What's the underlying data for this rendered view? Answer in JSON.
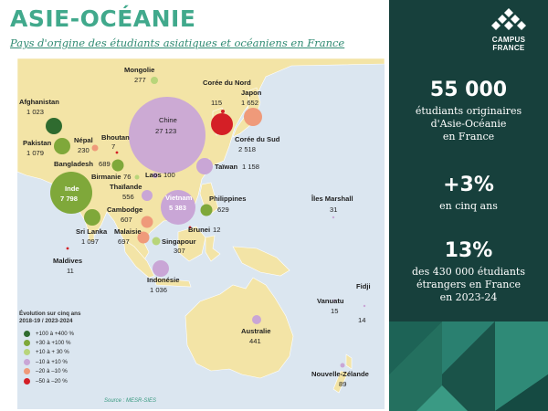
{
  "header": {
    "title": "ASIE-OCÉANIE",
    "subtitle": "Pays d'origine des étudiants asiatiques et océaniens en France"
  },
  "legend": {
    "title_line1": "Évolution sur cinq ans",
    "title_line2": "2018-19 / 2023-2024",
    "items": [
      {
        "label": "+100 à +400 %",
        "color": "#2f6b2f"
      },
      {
        "label": "+30 à +100 %",
        "color": "#7fa83a"
      },
      {
        "label": "+10 à + 30 %",
        "color": "#b8d57a"
      },
      {
        "label": "–10 à +10 %",
        "color": "#c9a6d6"
      },
      {
        "label": "–20 à –10 %",
        "color": "#ef9a7a"
      },
      {
        "label": "–50 à –20 %",
        "color": "#d41f26"
      }
    ]
  },
  "source": "Source : MESR-SIES",
  "countries": [
    {
      "name": "Mongolie",
      "value": "277",
      "color": "#b8d57a"
    },
    {
      "name": "Corée du Nord",
      "value": "115",
      "color": "#d41f26"
    },
    {
      "name": "Japon",
      "value": "1 652",
      "color": "#ef9a7a"
    },
    {
      "name": "Afghanistan",
      "value": "1 023",
      "color": "#2f6b2f"
    },
    {
      "name": "Chine",
      "value": "27 123",
      "color": "#c9a6d6"
    },
    {
      "name": "Corée du Sud",
      "value": "2 518",
      "color": "#d41f26"
    },
    {
      "name": "Népal",
      "value": "230",
      "color": "#ef9a7a"
    },
    {
      "name": "Bhoutan",
      "value": "7",
      "color": "#d41f26"
    },
    {
      "name": "Pakistan",
      "value": "1 079",
      "color": "#7fa83a"
    },
    {
      "name": "Bangladesh",
      "value": "689",
      "color": "#7fa83a"
    },
    {
      "name": "Taïwan",
      "value": "1 158",
      "color": "#c9a6d6"
    },
    {
      "name": "Birmanie",
      "value": "76",
      "color": "#b8d57a"
    },
    {
      "name": "Laos",
      "value": "100",
      "color": "#c9a6d6"
    },
    {
      "name": "Thaïlande",
      "value": "556",
      "color": "#c9a6d6"
    },
    {
      "name": "Inde",
      "value": "7 798",
      "color": "#7fa83a"
    },
    {
      "name": "Vietnam",
      "value": "5 383",
      "color": "#c9a6d6"
    },
    {
      "name": "Philippines",
      "value": "629",
      "color": "#7fa83a"
    },
    {
      "name": "Îles Marshall",
      "value": "31",
      "color": "#c9a6d6"
    },
    {
      "name": "Cambodge",
      "value": "607",
      "color": "#ef9a7a"
    },
    {
      "name": "Brunei",
      "value": "12",
      "color": "#d41f26"
    },
    {
      "name": "Sri Lanka",
      "value": "1 097",
      "color": "#7fa83a"
    },
    {
      "name": "Malaisie",
      "value": "697",
      "color": "#ef9a7a"
    },
    {
      "name": "Singapour",
      "value": "307",
      "color": "#b8d57a"
    },
    {
      "name": "Maldives",
      "value": "11",
      "color": "#d41f26"
    },
    {
      "name": "Indonésie",
      "value": "1 036",
      "color": "#c9a6d6"
    },
    {
      "name": "Vanuatu",
      "value": "15",
      "color": "#c9a6d6"
    },
    {
      "name": "Fidji",
      "value": "14",
      "color": "#c9a6d6"
    },
    {
      "name": "Australie",
      "value": "441",
      "color": "#c9a6d6"
    },
    {
      "name": "Nouvelle-Zélande",
      "value": "89",
      "color": "#c9a6d6"
    }
  ],
  "brand": {
    "line1": "CAMPUS",
    "line2": "FRANCE"
  },
  "stats": [
    {
      "big": "55 000",
      "lines": [
        "étudiants originaires",
        "d'Asie-Océanie",
        "en France"
      ]
    },
    {
      "big": "+3%",
      "lines": [
        "en cinq ans"
      ]
    },
    {
      "big": "13%",
      "lines": [
        "des 430 000 étudiants",
        "étrangers en France",
        "en 2023-24"
      ]
    }
  ]
}
